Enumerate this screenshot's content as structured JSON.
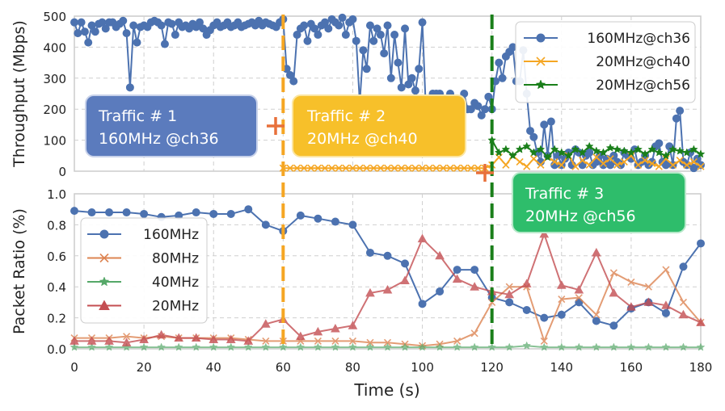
{
  "chart_data": [
    {
      "type": "line",
      "panel": "top",
      "title": "",
      "xlabel": "",
      "ylabel": "Throughput (Mbps)",
      "xlim": [
        0,
        180
      ],
      "ylim": [
        0,
        500
      ],
      "yticks": [
        "0",
        "100",
        "200",
        "300",
        "400",
        "500"
      ],
      "legend_position": "top-right",
      "series": [
        {
          "name": "160MHz@ch36",
          "color": "#4c72b0",
          "marker": "circle",
          "x": [
            0,
            1,
            2,
            3,
            4,
            5,
            6,
            7,
            8,
            9,
            10,
            11,
            12,
            13,
            14,
            15,
            16,
            17,
            18,
            19,
            20,
            21,
            22,
            23,
            24,
            25,
            26,
            27,
            28,
            29,
            30,
            31,
            32,
            33,
            34,
            35,
            36,
            37,
            38,
            39,
            40,
            41,
            42,
            43,
            44,
            45,
            46,
            47,
            48,
            49,
            50,
            51,
            52,
            53,
            54,
            55,
            56,
            57,
            58,
            59,
            60,
            61,
            62,
            63,
            64,
            65,
            66,
            67,
            68,
            69,
            70,
            71,
            72,
            73,
            74,
            75,
            76,
            77,
            78,
            79,
            80,
            81,
            82,
            83,
            84,
            85,
            86,
            87,
            88,
            89,
            90,
            91,
            92,
            93,
            94,
            95,
            96,
            97,
            98,
            99,
            100,
            101,
            102,
            103,
            104,
            105,
            106,
            107,
            108,
            109,
            110,
            111,
            112,
            113,
            114,
            115,
            116,
            117,
            118,
            119,
            120,
            121,
            122,
            123,
            124,
            125,
            126,
            127,
            128,
            129,
            130,
            131,
            132,
            133,
            134,
            135,
            136,
            137,
            138,
            139,
            140,
            141,
            142,
            143,
            144,
            145,
            146,
            147,
            148,
            149,
            150,
            151,
            152,
            153,
            154,
            155,
            156,
            157,
            158,
            159,
            160,
            161,
            162,
            163,
            164,
            165,
            166,
            167,
            168,
            169,
            170,
            171,
            172,
            173,
            174,
            175,
            176,
            177,
            178,
            179,
            180
          ],
          "y": [
            480,
            445,
            480,
            450,
            415,
            470,
            450,
            475,
            480,
            460,
            480,
            480,
            465,
            475,
            485,
            445,
            270,
            470,
            415,
            465,
            470,
            465,
            480,
            485,
            480,
            470,
            410,
            480,
            475,
            440,
            480,
            465,
            470,
            460,
            475,
            465,
            480,
            460,
            440,
            455,
            470,
            480,
            465,
            470,
            480,
            465,
            470,
            480,
            465,
            470,
            475,
            480,
            470,
            485,
            470,
            480,
            475,
            470,
            465,
            480,
            490,
            330,
            310,
            290,
            440,
            460,
            470,
            420,
            475,
            460,
            440,
            470,
            480,
            460,
            490,
            480,
            470,
            495,
            440,
            480,
            490,
            420,
            220,
            390,
            330,
            470,
            420,
            460,
            440,
            380,
            470,
            300,
            440,
            350,
            270,
            460,
            280,
            300,
            260,
            330,
            480,
            200,
            220,
            250,
            250,
            250,
            210,
            230,
            250,
            200,
            220,
            200,
            250,
            200,
            200,
            220,
            210,
            180,
            200,
            240,
            200,
            290,
            350,
            300,
            370,
            385,
            400,
            290,
            290,
            390,
            250,
            130,
            110,
            60,
            30,
            150,
            50,
            160,
            20,
            50,
            20,
            40,
            60,
            20,
            70,
            60,
            20,
            50,
            60,
            20,
            30,
            50,
            20,
            40,
            20,
            50,
            30,
            20,
            60,
            50,
            40,
            70,
            20,
            30,
            50,
            20,
            30,
            80,
            90,
            30,
            20,
            80,
            20,
            170,
            195,
            30,
            20,
            60,
            10,
            40,
            20
          ]
        },
        {
          "name": "20MHz@ch40",
          "color": "#f5a623",
          "marker": "x",
          "x": [
            60,
            62,
            64,
            66,
            68,
            70,
            72,
            74,
            76,
            78,
            80,
            82,
            84,
            86,
            88,
            90,
            92,
            94,
            96,
            98,
            100,
            102,
            104,
            106,
            108,
            110,
            112,
            114,
            116,
            118,
            120,
            122,
            124,
            126,
            128,
            130,
            132,
            134,
            136,
            138,
            140,
            142,
            144,
            146,
            148,
            150,
            152,
            154,
            156,
            158,
            160,
            162,
            164,
            166,
            168,
            170,
            172,
            174,
            176,
            178,
            180
          ],
          "y": [
            10,
            10,
            10,
            10,
            10,
            10,
            10,
            10,
            10,
            10,
            10,
            10,
            10,
            10,
            10,
            10,
            10,
            10,
            10,
            10,
            10,
            10,
            10,
            10,
            10,
            10,
            10,
            10,
            10,
            10,
            20,
            45,
            20,
            50,
            30,
            15,
            40,
            20,
            45,
            30,
            20,
            50,
            15,
            35,
            20,
            45,
            25,
            40,
            20,
            30,
            50,
            20,
            35,
            25,
            15,
            40,
            20,
            35,
            20,
            30,
            15
          ]
        },
        {
          "name": "20MHz@ch56",
          "color": "#1a7f1a",
          "marker": "star",
          "x": [
            120,
            122,
            124,
            126,
            128,
            130,
            132,
            134,
            136,
            138,
            140,
            142,
            144,
            146,
            148,
            150,
            152,
            154,
            156,
            158,
            160,
            162,
            164,
            166,
            168,
            170,
            172,
            174,
            176,
            178,
            180
          ],
          "y": [
            100,
            60,
            70,
            50,
            70,
            80,
            60,
            70,
            45,
            70,
            60,
            50,
            70,
            60,
            80,
            65,
            60,
            75,
            70,
            65,
            60,
            70,
            55,
            70,
            60,
            50,
            70,
            65,
            60,
            70,
            55
          ]
        }
      ]
    },
    {
      "type": "line",
      "panel": "bottom",
      "title": "",
      "xlabel": "Time (s)",
      "ylabel": "Packet Ratio (%)",
      "xlim": [
        0,
        180
      ],
      "ylim": [
        0,
        1.0
      ],
      "xticks": [
        "0",
        "20",
        "40",
        "60",
        "80",
        "100",
        "120",
        "140",
        "160",
        "180"
      ],
      "yticks": [
        "0.0",
        "0.2",
        "0.4",
        "0.6",
        "0.8",
        "1.0"
      ],
      "legend_position": "center-left",
      "series": [
        {
          "name": "160MHz",
          "color": "#4c72b0",
          "marker": "circle",
          "x": [
            0,
            5,
            10,
            15,
            20,
            25,
            30,
            35,
            40,
            45,
            50,
            55,
            60,
            65,
            70,
            75,
            80,
            85,
            90,
            95,
            100,
            105,
            110,
            115,
            120,
            125,
            130,
            135,
            140,
            145,
            150,
            155,
            160,
            165,
            170,
            175,
            180
          ],
          "y": [
            0.89,
            0.88,
            0.88,
            0.88,
            0.87,
            0.85,
            0.86,
            0.88,
            0.87,
            0.87,
            0.9,
            0.8,
            0.76,
            0.86,
            0.84,
            0.82,
            0.8,
            0.62,
            0.6,
            0.55,
            0.29,
            0.37,
            0.51,
            0.51,
            0.33,
            0.3,
            0.25,
            0.2,
            0.22,
            0.3,
            0.18,
            0.15,
            0.26,
            0.3,
            0.23,
            0.53,
            0.68
          ]
        },
        {
          "name": "80MHz",
          "color": "#dd8452",
          "marker": "x",
          "x": [
            0,
            5,
            10,
            15,
            20,
            25,
            30,
            35,
            40,
            45,
            50,
            55,
            60,
            65,
            70,
            75,
            80,
            85,
            90,
            95,
            100,
            105,
            110,
            115,
            120,
            125,
            130,
            135,
            140,
            145,
            150,
            155,
            160,
            165,
            170,
            175,
            180
          ],
          "y": [
            0.07,
            0.07,
            0.07,
            0.08,
            0.07,
            0.08,
            0.07,
            0.07,
            0.07,
            0.07,
            0.06,
            0.05,
            0.05,
            0.05,
            0.05,
            0.05,
            0.05,
            0.04,
            0.04,
            0.03,
            0.02,
            0.03,
            0.05,
            0.1,
            0.3,
            0.4,
            0.4,
            0.05,
            0.32,
            0.33,
            0.22,
            0.49,
            0.43,
            0.4,
            0.51,
            0.3,
            0.17
          ]
        },
        {
          "name": "40MHz",
          "color": "#55a868",
          "marker": "star",
          "x": [
            0,
            5,
            10,
            15,
            20,
            25,
            30,
            35,
            40,
            45,
            50,
            55,
            60,
            65,
            70,
            75,
            80,
            85,
            90,
            95,
            100,
            105,
            110,
            115,
            120,
            125,
            130,
            135,
            140,
            145,
            150,
            155,
            160,
            165,
            170,
            175,
            180
          ],
          "y": [
            0.01,
            0.01,
            0.01,
            0.01,
            0.01,
            0.01,
            0.01,
            0.01,
            0.01,
            0.01,
            0.01,
            0.01,
            0.01,
            0.01,
            0.01,
            0.01,
            0.01,
            0.01,
            0.01,
            0.01,
            0.01,
            0.01,
            0.01,
            0.01,
            0.01,
            0.01,
            0.02,
            0.01,
            0.01,
            0.01,
            0.01,
            0.01,
            0.01,
            0.01,
            0.01,
            0.01,
            0.01
          ]
        },
        {
          "name": "20MHz",
          "color": "#c44e52",
          "marker": "triangle",
          "x": [
            0,
            5,
            10,
            15,
            20,
            25,
            30,
            35,
            40,
            45,
            50,
            55,
            60,
            65,
            70,
            75,
            80,
            85,
            90,
            95,
            100,
            105,
            110,
            115,
            120,
            125,
            130,
            135,
            140,
            145,
            150,
            155,
            160,
            165,
            170,
            175,
            180
          ],
          "y": [
            0.05,
            0.05,
            0.05,
            0.04,
            0.06,
            0.09,
            0.07,
            0.07,
            0.06,
            0.06,
            0.05,
            0.16,
            0.19,
            0.08,
            0.11,
            0.13,
            0.15,
            0.36,
            0.38,
            0.44,
            0.71,
            0.6,
            0.45,
            0.4,
            0.37,
            0.35,
            0.42,
            0.74,
            0.41,
            0.38,
            0.62,
            0.36,
            0.27,
            0.3,
            0.28,
            0.22,
            0.17
          ]
        }
      ]
    }
  ],
  "events": [
    {
      "time": 60,
      "color": "#f5a623",
      "label_line1": "Traffic # 2",
      "label_line2": "20MHz @ch40",
      "box_color": "#f7c02a"
    },
    {
      "time": 120,
      "color": "#1a7f1a",
      "label_line1": "Traffic # 3",
      "label_line2": "20MHz @ch56",
      "box_color": "#2ebd6b"
    }
  ],
  "start_box": {
    "label_line1": "Traffic # 1",
    "label_line2": "160MHz @ch36",
    "box_color": "#5b7bbd"
  },
  "plus_color": "#e8703a"
}
